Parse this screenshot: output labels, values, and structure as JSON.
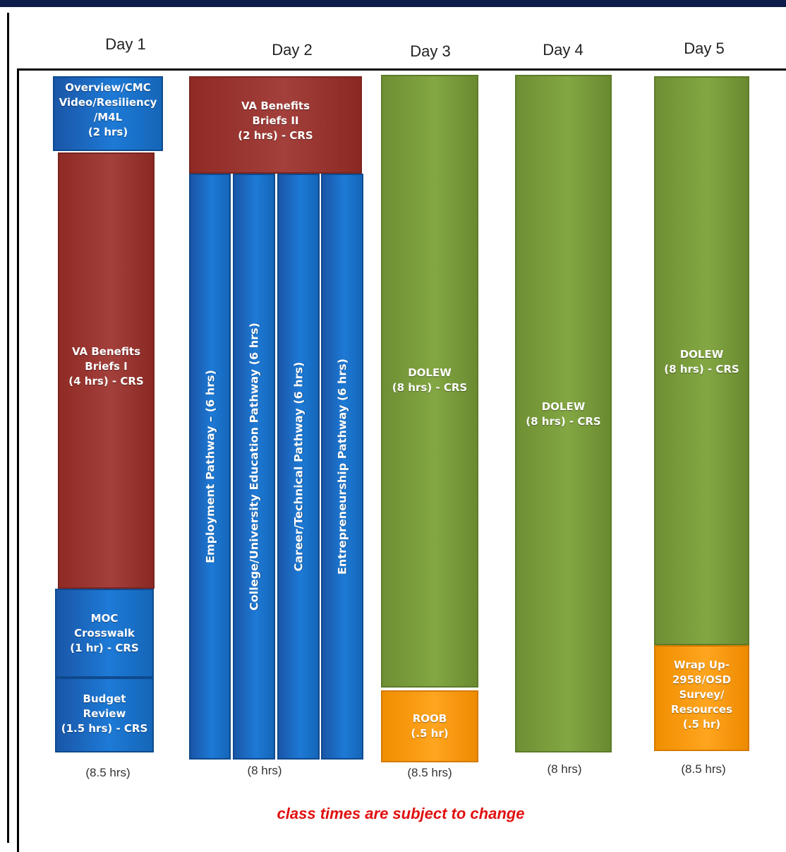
{
  "days": [
    "Day 1",
    "Day 2",
    "Day 3",
    "Day 4",
    "Day 5"
  ],
  "blocks": {
    "d1_overview": [
      "Overview/CMC",
      "Video/Resiliency",
      "/M4L",
      "(2 hrs)"
    ],
    "d1_va": [
      "VA Benefits",
      "Briefs  I",
      "(4 hrs) - CRS"
    ],
    "d1_moc": [
      "MOC",
      "Crosswalk",
      "(1 hr)  - CRS"
    ],
    "d1_budget": [
      "Budget",
      "Review",
      "(1.5 hrs) - CRS"
    ],
    "d2_va": [
      "VA Benefits",
      "Briefs  II",
      "(2 hrs) - CRS"
    ],
    "d2_employment": "Employment Pathway – (6 hrs)",
    "d2_college": "College/University Education  Pathway (6 hrs)",
    "d2_career": "Career/Technical Pathway (6 hrs)",
    "d2_entrepreneurship": "Entrepreneurship Pathway (6 hrs)",
    "d3_dolew": [
      "DOLEW",
      "(8 hrs) - CRS"
    ],
    "d3_roob": [
      "ROOB",
      "(.5 hr)"
    ],
    "d4_dolew": [
      "DOLEW",
      "(8 hrs) - CRS"
    ],
    "d5_dolew": [
      "DOLEW",
      "(8 hrs) - CRS"
    ],
    "d5_wrap": [
      "Wrap Up-",
      "2958/OSD",
      "Survey/",
      "Resources",
      "(.5 hr)"
    ]
  },
  "totals": [
    "(8.5 hrs)",
    "(8 hrs)",
    "(8.5 hrs)",
    "(8 hrs)",
    "(8.5 hrs)"
  ],
  "note": "class times are subject to change",
  "colors": {
    "blue": "#1d7ad6",
    "red": "#a3403b",
    "green": "#83a743",
    "orange": "#ffa51f",
    "note": "#e01010"
  }
}
